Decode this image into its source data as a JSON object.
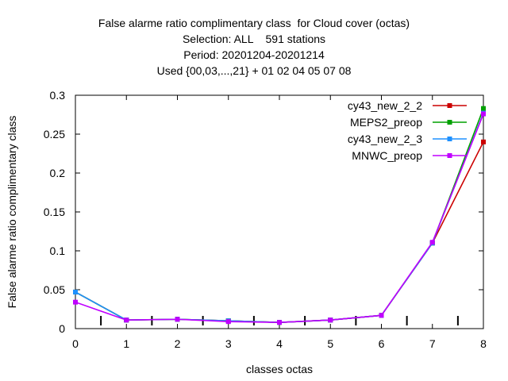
{
  "chart_data": {
    "type": "line",
    "title": [
      "False alarme ratio complimentary class  for Cloud cover (octas)",
      "Selection: ALL    591 stations",
      "Period: 20201204-20201214",
      "Used {00,03,...,21} + 01 02 04 05 07 08"
    ],
    "xlabel": "classes octas",
    "ylabel": "False alarme ratio complimentary class",
    "xlim": [
      0,
      8
    ],
    "ylim": [
      0,
      0.3
    ],
    "x_ticks": [
      "0",
      "1",
      "2",
      "3",
      "4",
      "5",
      "6",
      "7",
      "8"
    ],
    "y_ticks": [
      "0",
      "0.05",
      "0.1",
      "0.15",
      "0.2",
      "0.25",
      "0.3"
    ],
    "grid": false,
    "legend_position": "top-right",
    "x": [
      0,
      1,
      2,
      3,
      4,
      5,
      6,
      7,
      8
    ],
    "series": [
      {
        "name": "cy43_new_2_2",
        "color": "#cc0000",
        "values": [
          0.047,
          0.011,
          0.012,
          0.01,
          0.008,
          0.011,
          0.017,
          0.11,
          0.24
        ]
      },
      {
        "name": "MEPS2_preop",
        "color": "#00a000",
        "values": [
          0.047,
          0.011,
          0.012,
          0.01,
          0.008,
          0.011,
          0.017,
          0.11,
          0.283
        ]
      },
      {
        "name": "cy43_new_2_3",
        "color": "#1e90ff",
        "values": [
          0.047,
          0.011,
          0.012,
          0.01,
          0.008,
          0.011,
          0.017,
          0.11,
          0.277
        ]
      },
      {
        "name": "MNWC_preop",
        "color": "#c000ff",
        "values": [
          0.034,
          0.011,
          0.012,
          0.009,
          0.008,
          0.011,
          0.017,
          0.111,
          0.276
        ]
      }
    ]
  }
}
